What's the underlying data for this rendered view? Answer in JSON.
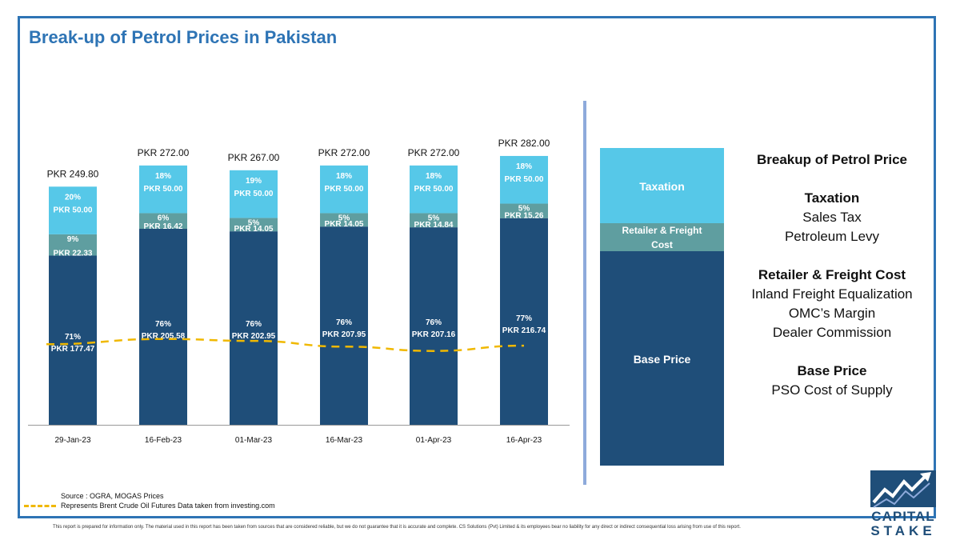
{
  "title": "Break-up of Petrol Prices in Pakistan",
  "colors": {
    "base": "#1f4e79",
    "freight": "#5f9ea0",
    "tax": "#56c8e8",
    "brent": "#f0b800",
    "accent": "#2e74b5"
  },
  "chart_data": {
    "type": "bar",
    "stacked": true,
    "categories": [
      "29-Jan-23",
      "16-Feb-23",
      "01-Mar-23",
      "16-Mar-23",
      "01-Apr-23",
      "16-Apr-23"
    ],
    "totals": [
      "PKR 249.80",
      "PKR 272.00",
      "PKR 267.00",
      "PKR 272.00",
      "PKR 272.00",
      "PKR 282.00"
    ],
    "series": [
      {
        "key": "base",
        "values": [
          177.47,
          205.58,
          202.95,
          207.95,
          207.16,
          216.74
        ],
        "pct_labels": [
          "71%",
          "76%",
          "76%",
          "76%",
          "76%",
          "77%"
        ],
        "value_labels": [
          "PKR 177.47",
          "PKR 205.58",
          "PKR 202.95",
          "PKR 207.95",
          "PKR 207.16",
          "PKR 216.74"
        ]
      },
      {
        "key": "freight",
        "values": [
          22.33,
          16.42,
          14.05,
          14.05,
          14.84,
          15.26
        ],
        "pct_labels": [
          "9%",
          "6%",
          "5%",
          "5%",
          "5%",
          "5%"
        ],
        "value_labels": [
          "PKR 22.33",
          "PKR 16.42",
          "PKR 14.05",
          "PKR 14.05",
          "PKR 14.84",
          "PKR 15.26"
        ]
      },
      {
        "key": "tax",
        "values": [
          50.0,
          50.0,
          50.0,
          50.0,
          50.0,
          50.0
        ],
        "pct_labels": [
          "20%",
          "18%",
          "19%",
          "18%",
          "18%",
          "18%"
        ],
        "value_labels": [
          "PKR 50.00",
          "PKR 50.00",
          "PKR 50.00",
          "PKR 50.00",
          "PKR 50.00",
          "PKR 50.00"
        ]
      }
    ],
    "brent_line": {
      "values": [
        82.9,
        85.1,
        84.3,
        81.9,
        80.1,
        82.3
      ]
    }
  },
  "legend": {
    "taxation": "Taxation",
    "freight": "Retailer & Freight Cost",
    "base": "Base Price"
  },
  "explanation": {
    "heading": "Breakup of Petrol Price",
    "sections": [
      {
        "head": "Taxation",
        "items": [
          "Sales Tax",
          "Petroleum Levy"
        ]
      },
      {
        "head": "Retailer & Freight Cost",
        "items": [
          "Inland Freight Equalization",
          "OMC’s Margin",
          "Dealer Commission"
        ]
      },
      {
        "head": "Base Price",
        "items": [
          "PSO Cost of Supply"
        ]
      }
    ]
  },
  "footer": {
    "source": "Source : OGRA, MOGAS Prices",
    "line_legend": "Represents Brent Crude Oil Futures Data taken from investing.com",
    "disclaimer": "This report is prepared for information only. The material used in this report has been taken from sources that are considered reliable, but we do not guarantee that it is accurate and complete. CS Solutions (Pvt) Limited & its employees bear no liability for any direct or indirect consequential loss arising from use of this report."
  },
  "logo": {
    "line1": "CAPITAL",
    "line2": "STAKE"
  }
}
